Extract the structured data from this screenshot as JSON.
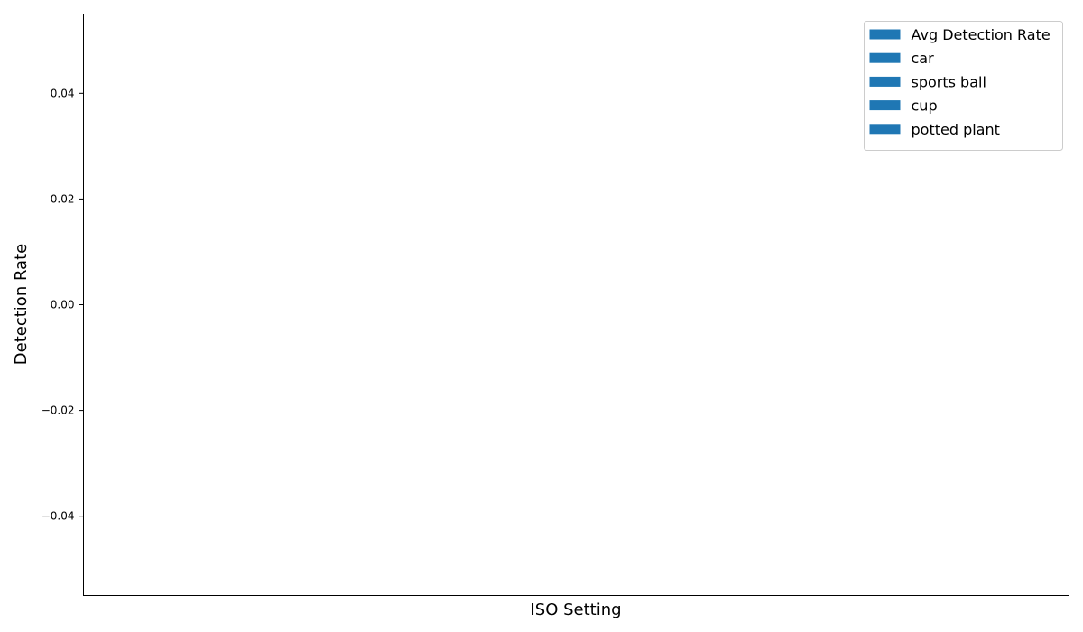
{
  "chart_data": {
    "type": "bar",
    "title": "",
    "xlabel": "ISO Setting",
    "ylabel": "Detection Rate",
    "categories": [],
    "series": [
      {
        "name": "Avg Detection Rate",
        "values": []
      },
      {
        "name": "car",
        "values": []
      },
      {
        "name": "sports ball",
        "values": []
      },
      {
        "name": "cup",
        "values": []
      },
      {
        "name": "potted plant",
        "values": []
      }
    ],
    "ylim": [
      -0.055,
      0.055
    ],
    "yticks": [
      -0.04,
      -0.02,
      0.0,
      0.02,
      0.04
    ],
    "ytick_labels": [
      "−0.04",
      "−0.02",
      "0.00",
      "0.02",
      "0.04"
    ],
    "grid": false,
    "legend_position": "top-right"
  },
  "colors": {
    "series_fill": "#1f77b4",
    "axis": "#000000",
    "legend_border": "#cccccc",
    "background": "#ffffff"
  }
}
